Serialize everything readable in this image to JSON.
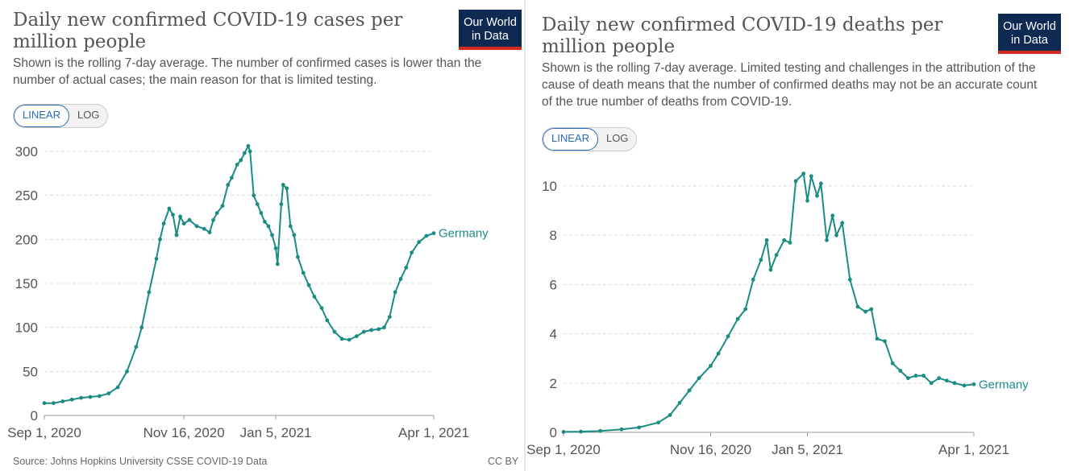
{
  "logo": {
    "line1": "Our World",
    "line2": "in Data"
  },
  "toggle": {
    "linear": "LINEAR",
    "log": "LOG"
  },
  "footer": {
    "source": "Source: Johns Hopkins University CSSE COVID-19 Data",
    "license": "CC BY"
  },
  "colors": {
    "series": "#1a8c84",
    "grid": "#dddddd",
    "axis": "#555555",
    "brand_bg": "#0e2a52",
    "brand_accent": "#d42b21",
    "toggle_active": "#2a6ab3"
  },
  "left": {
    "title": "Daily new confirmed COVID-19 cases per million people",
    "subtitle": "Shown is the rolling 7-day average. The number of confirmed cases is lower than the number of actual cases; the main reason for that is limited testing."
  },
  "right": {
    "title": "Daily new confirmed COVID-19 deaths per million people",
    "subtitle": "Shown is the rolling 7-day average. Limited testing and challenges in the attribution of the cause of death means that the number of confirmed deaths may not be an accurate count of the true number of deaths from COVID-19."
  },
  "chart_data": [
    {
      "type": "line",
      "title": "Daily new confirmed COVID-19 cases per million people",
      "ylim": [
        0,
        300
      ],
      "yticks": [
        0,
        50,
        100,
        150,
        200,
        250,
        300
      ],
      "xlim": [
        "2020-09-01",
        "2021-04-01"
      ],
      "xticks": [
        {
          "date": "2020-09-01",
          "label": "Sep 1, 2020"
        },
        {
          "date": "2020-11-16",
          "label": "Nov 16, 2020"
        },
        {
          "date": "2021-01-05",
          "label": "Jan 5, 2021"
        },
        {
          "date": "2021-04-01",
          "label": "Apr 1, 2021"
        }
      ],
      "grid": true,
      "series": [
        {
          "name": "Germany",
          "points": [
            [
              "2020-09-01",
              14
            ],
            [
              "2020-09-06",
              14
            ],
            [
              "2020-09-11",
              16
            ],
            [
              "2020-09-16",
              18
            ],
            [
              "2020-09-21",
              20
            ],
            [
              "2020-09-26",
              21
            ],
            [
              "2020-10-01",
              22
            ],
            [
              "2020-10-06",
              25
            ],
            [
              "2020-10-11",
              32
            ],
            [
              "2020-10-16",
              50
            ],
            [
              "2020-10-21",
              78
            ],
            [
              "2020-10-24",
              100
            ],
            [
              "2020-10-28",
              140
            ],
            [
              "2020-11-01",
              178
            ],
            [
              "2020-11-03",
              200
            ],
            [
              "2020-11-05",
              218
            ],
            [
              "2020-11-08",
              235
            ],
            [
              "2020-11-10",
              228
            ],
            [
              "2020-11-12",
              205
            ],
            [
              "2020-11-14",
              226
            ],
            [
              "2020-11-16",
              218
            ],
            [
              "2020-11-19",
              222
            ],
            [
              "2020-11-23",
              215
            ],
            [
              "2020-11-27",
              212
            ],
            [
              "2020-11-30",
              208
            ],
            [
              "2020-12-02",
              222
            ],
            [
              "2020-12-04",
              230
            ],
            [
              "2020-12-07",
              238
            ],
            [
              "2020-12-10",
              262
            ],
            [
              "2020-12-12",
              270
            ],
            [
              "2020-12-15",
              285
            ],
            [
              "2020-12-17",
              290
            ],
            [
              "2020-12-19",
              298
            ],
            [
              "2020-12-21",
              306
            ],
            [
              "2020-12-22",
              300
            ],
            [
              "2020-12-24",
              250
            ],
            [
              "2020-12-26",
              240
            ],
            [
              "2020-12-28",
              230
            ],
            [
              "2020-12-30",
              220
            ],
            [
              "2021-01-01",
              215
            ],
            [
              "2021-01-03",
              205
            ],
            [
              "2021-01-05",
              190
            ],
            [
              "2021-01-06",
              172
            ],
            [
              "2021-01-08",
              240
            ],
            [
              "2021-01-09",
              262
            ],
            [
              "2021-01-11",
              258
            ],
            [
              "2021-01-13",
              215
            ],
            [
              "2021-01-15",
              205
            ],
            [
              "2021-01-17",
              180
            ],
            [
              "2021-01-20",
              162
            ],
            [
              "2021-01-23",
              148
            ],
            [
              "2021-01-26",
              135
            ],
            [
              "2021-01-30",
              122
            ],
            [
              "2021-02-02",
              108
            ],
            [
              "2021-02-06",
              95
            ],
            [
              "2021-02-10",
              87
            ],
            [
              "2021-02-14",
              86
            ],
            [
              "2021-02-18",
              90
            ],
            [
              "2021-02-22",
              95
            ],
            [
              "2021-02-26",
              97
            ],
            [
              "2021-03-02",
              98
            ],
            [
              "2021-03-05",
              100
            ],
            [
              "2021-03-08",
              112
            ],
            [
              "2021-03-11",
              140
            ],
            [
              "2021-03-14",
              155
            ],
            [
              "2021-03-17",
              168
            ],
            [
              "2021-03-20",
              185
            ],
            [
              "2021-03-24",
              197
            ],
            [
              "2021-03-28",
              204
            ],
            [
              "2021-04-01",
              207
            ]
          ]
        }
      ]
    },
    {
      "type": "line",
      "title": "Daily new confirmed COVID-19 deaths per million people",
      "ylim": [
        0,
        10
      ],
      "yticks": [
        0,
        2,
        4,
        6,
        8,
        10
      ],
      "xlim": [
        "2020-09-01",
        "2021-04-01"
      ],
      "xticks": [
        {
          "date": "2020-09-01",
          "label": "Sep 1, 2020"
        },
        {
          "date": "2020-11-16",
          "label": "Nov 16, 2020"
        },
        {
          "date": "2021-01-05",
          "label": "Jan 5, 2021"
        },
        {
          "date": "2021-04-01",
          "label": "Apr 1, 2021"
        }
      ],
      "grid": true,
      "series": [
        {
          "name": "Germany",
          "points": [
            [
              "2020-09-01",
              0.02
            ],
            [
              "2020-09-10",
              0.03
            ],
            [
              "2020-09-20",
              0.06
            ],
            [
              "2020-10-01",
              0.12
            ],
            [
              "2020-10-10",
              0.2
            ],
            [
              "2020-10-20",
              0.4
            ],
            [
              "2020-10-26",
              0.7
            ],
            [
              "2020-10-31",
              1.2
            ],
            [
              "2020-11-05",
              1.7
            ],
            [
              "2020-11-10",
              2.2
            ],
            [
              "2020-11-16",
              2.7
            ],
            [
              "2020-11-20",
              3.2
            ],
            [
              "2020-11-25",
              3.9
            ],
            [
              "2020-11-30",
              4.6
            ],
            [
              "2020-12-04",
              5.0
            ],
            [
              "2020-12-08",
              6.2
            ],
            [
              "2020-12-12",
              7.0
            ],
            [
              "2020-12-15",
              7.8
            ],
            [
              "2020-12-17",
              6.6
            ],
            [
              "2020-12-20",
              7.2
            ],
            [
              "2020-12-24",
              7.8
            ],
            [
              "2020-12-27",
              7.7
            ],
            [
              "2020-12-30",
              10.2
            ],
            [
              "2021-01-03",
              10.5
            ],
            [
              "2021-01-05",
              9.4
            ],
            [
              "2021-01-07",
              10.4
            ],
            [
              "2021-01-10",
              9.6
            ],
            [
              "2021-01-12",
              10.1
            ],
            [
              "2021-01-15",
              7.8
            ],
            [
              "2021-01-18",
              8.8
            ],
            [
              "2021-01-20",
              8.0
            ],
            [
              "2021-01-23",
              8.5
            ],
            [
              "2021-01-27",
              6.2
            ],
            [
              "2021-01-31",
              5.1
            ],
            [
              "2021-02-04",
              4.9
            ],
            [
              "2021-02-07",
              5.0
            ],
            [
              "2021-02-10",
              3.8
            ],
            [
              "2021-02-14",
              3.7
            ],
            [
              "2021-02-18",
              2.8
            ],
            [
              "2021-02-22",
              2.5
            ],
            [
              "2021-02-26",
              2.2
            ],
            [
              "2021-03-02",
              2.3
            ],
            [
              "2021-03-06",
              2.3
            ],
            [
              "2021-03-10",
              2.0
            ],
            [
              "2021-03-14",
              2.2
            ],
            [
              "2021-03-18",
              2.1
            ],
            [
              "2021-03-22",
              2.0
            ],
            [
              "2021-03-27",
              1.9
            ],
            [
              "2021-04-01",
              1.95
            ]
          ]
        }
      ]
    }
  ]
}
